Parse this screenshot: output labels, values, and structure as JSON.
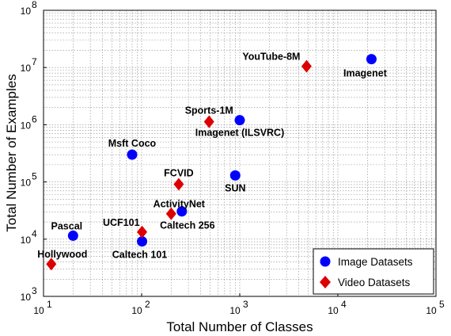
{
  "chart_data": {
    "type": "scatter",
    "xlabel": "Total Number of Classes",
    "ylabel": "Total Number of Examples",
    "x_scale": "log",
    "y_scale": "log",
    "xlim": [
      10,
      100000
    ],
    "ylim": [
      1000,
      100000000
    ],
    "x_ticks": [
      {
        "value": 10,
        "base": "10",
        "exp": "1"
      },
      {
        "value": 100,
        "base": "10",
        "exp": "2"
      },
      {
        "value": 1000,
        "base": "10",
        "exp": "3"
      },
      {
        "value": 10000,
        "base": "10",
        "exp": "4"
      },
      {
        "value": 100000,
        "base": "10",
        "exp": "5"
      }
    ],
    "y_ticks": [
      {
        "value": 1000,
        "base": "10",
        "exp": "3"
      },
      {
        "value": 10000,
        "base": "10",
        "exp": "4"
      },
      {
        "value": 100000,
        "base": "10",
        "exp": "5"
      },
      {
        "value": 1000000,
        "base": "10",
        "exp": "6"
      },
      {
        "value": 10000000,
        "base": "10",
        "exp": "7"
      },
      {
        "value": 100000000,
        "base": "10",
        "exp": "8"
      }
    ],
    "grid": true,
    "legend_position": "bottom-right",
    "series": [
      {
        "name": "Image Datasets",
        "marker": "circle",
        "color": "#0000ff",
        "points": [
          {
            "label": "Imagenet",
            "x": 22000,
            "y": 14000000,
            "label_pos": "below-left"
          },
          {
            "label": "Imagenet (ILSVRC)",
            "x": 1000,
            "y": 1200000,
            "label_pos": "below"
          },
          {
            "label": "Msft Coco",
            "x": 80,
            "y": 300000,
            "label_pos": "above"
          },
          {
            "label": "SUN",
            "x": 900,
            "y": 130000,
            "label_pos": "below"
          },
          {
            "label": "Caltech 256",
            "x": 257,
            "y": 30600,
            "label_pos": "below-left"
          },
          {
            "label": "Pascal",
            "x": 20,
            "y": 11500,
            "label_pos": "above"
          },
          {
            "label": "Caltech 101",
            "x": 101,
            "y": 9144,
            "label_pos": "below"
          }
        ]
      },
      {
        "name": "Video Datasets",
        "marker": "diamond",
        "color": "#dd0000",
        "points": [
          {
            "label": "YouTube-8M",
            "x": 4800,
            "y": 10500000,
            "label_pos": "above-left"
          },
          {
            "label": "Sports-1M",
            "x": 487,
            "y": 1130000,
            "label_pos": "above"
          },
          {
            "label": "FCVID",
            "x": 239,
            "y": 91000,
            "label_pos": "above"
          },
          {
            "label": "ActivityNet",
            "x": 200,
            "y": 27800,
            "label_pos": "above-right"
          },
          {
            "label": "UCF101",
            "x": 101,
            "y": 13320,
            "label_pos": "above-left"
          },
          {
            "label": "Hollywood",
            "x": 12,
            "y": 3669,
            "label_pos": "above"
          }
        ]
      }
    ]
  }
}
